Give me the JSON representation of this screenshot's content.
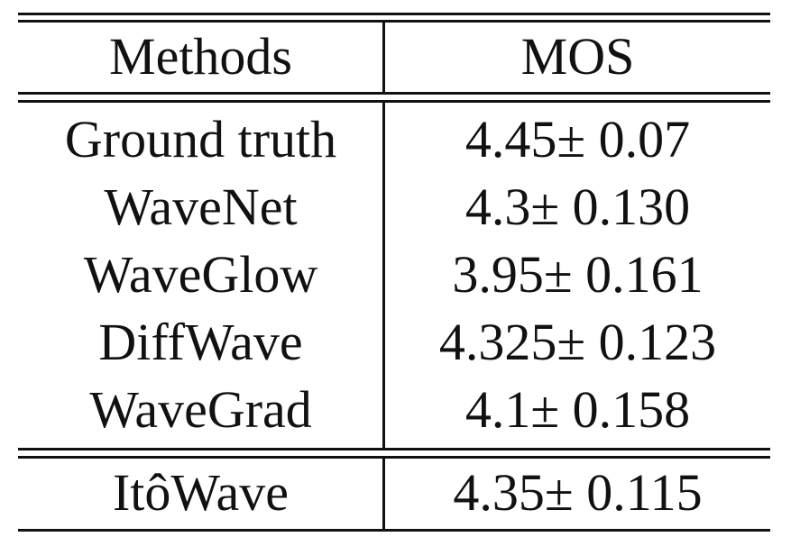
{
  "table": {
    "header": {
      "methods": "Methods",
      "mos": "MOS"
    },
    "rows": [
      {
        "method": "Ground truth",
        "mos": "4.45± 0.07"
      },
      {
        "method": "WaveNet",
        "mos": "4.3± 0.130"
      },
      {
        "method": "WaveGlow",
        "mos": "3.95± 0.161"
      },
      {
        "method": "DiffWave",
        "mos": "4.325± 0.123"
      },
      {
        "method": "WaveGrad",
        "mos": "4.1± 0.158"
      }
    ],
    "final_row": {
      "method": "ItôWave",
      "mos": "4.35± 0.115"
    }
  }
}
